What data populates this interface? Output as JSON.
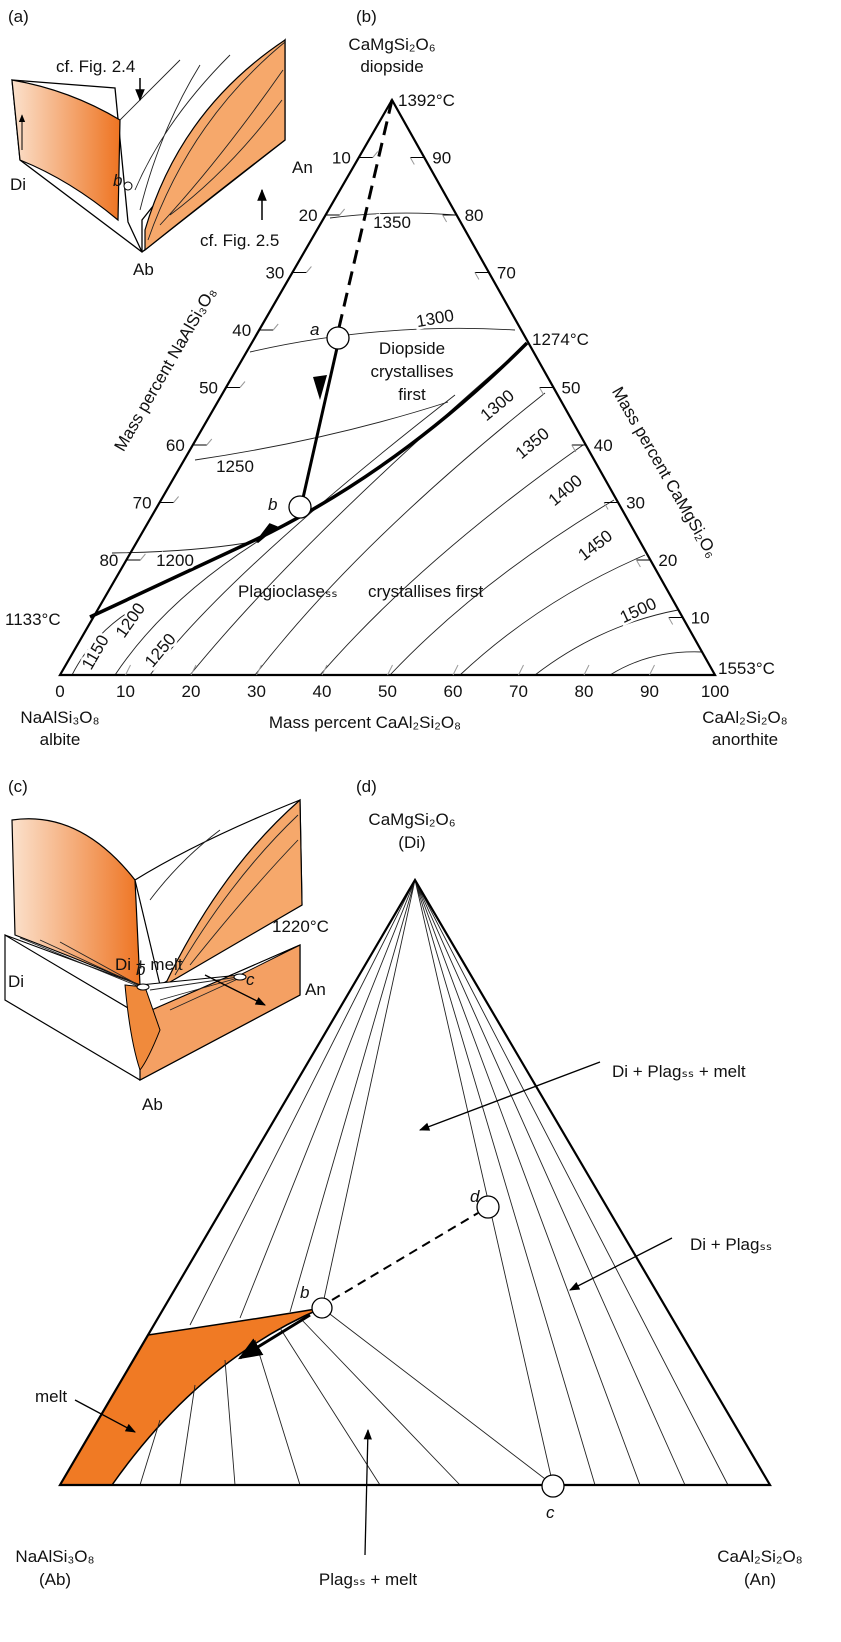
{
  "panel_a": {
    "label": "(a)",
    "callout_top": "cf. Fig. 2.4",
    "callout_right": "cf. Fig. 2.5",
    "corner_di": "Di",
    "corner_an": "An",
    "corner_ab": "Ab",
    "point": "b"
  },
  "panel_b": {
    "label": "(b)",
    "apex": [
      "CaMgSi₂O₆",
      "diopside"
    ],
    "left_corner": [
      "NaAlSi₃O₈",
      "albite"
    ],
    "right_corner": [
      "CaAl₂Si₂O₈",
      "anorthite"
    ],
    "temp_apex": "1392°C",
    "temp_cotectic": "1274°C",
    "temp_left": "1133°C",
    "temp_right": "1553°C",
    "bottom_axis": {
      "title": "Mass percent CaAl₂Si₂O₈",
      "ticks": [
        0,
        10,
        20,
        30,
        40,
        50,
        60,
        70,
        80,
        90,
        100
      ]
    },
    "left_axis": {
      "title": "Mass percent NaAlSi₃O₈",
      "ticks": [
        10,
        20,
        30,
        40,
        50,
        60,
        70,
        80
      ]
    },
    "right_axis": {
      "title": "Mass percent CaMgSi₂O₆",
      "ticks": [
        90,
        80,
        70,
        50,
        40,
        30,
        20,
        10
      ]
    },
    "isotherms": [
      1350,
      1300,
      1250,
      1200,
      1150,
      1200,
      1250,
      1300,
      1350,
      1400,
      1450,
      1500
    ],
    "diopside_field": [
      "Diopside",
      "crystallises",
      "first"
    ],
    "plag_field": [
      "Plagioclaseₛₛ",
      "crystallises first"
    ],
    "point_a": "a",
    "point_b": "b"
  },
  "panel_c": {
    "label": "(c)",
    "temperature": "1220°C",
    "corner_di": "Di",
    "corner_an": "An",
    "corner_ab": "Ab",
    "point_b": "b",
    "point_c": "c"
  },
  "panel_d": {
    "label": "(d)",
    "apex": [
      "CaMgSi₂O₆",
      "(Di)"
    ],
    "left_corner": [
      "NaAlSi₃O₈",
      "(Ab)"
    ],
    "right_corner": [
      "CaAl₂Si₂O₈",
      "(An)"
    ],
    "field_di_plag_melt": "Di + Plagₛₛ + melt",
    "field_di_melt": "Di + melt",
    "field_di_plag": "Di + Plagₛₛ",
    "field_melt": "melt",
    "field_plag_melt": "Plagₛₛ + melt",
    "point_b": "b",
    "point_c": "c",
    "point_d": "d"
  }
}
